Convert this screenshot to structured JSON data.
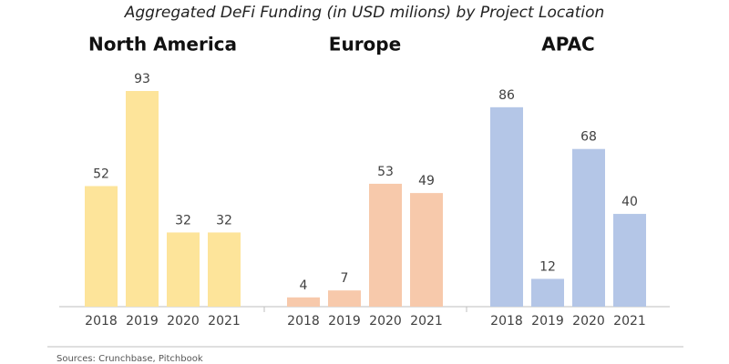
{
  "title": "Aggregated DeFi Funding (in USD milions) by Project Location",
  "source": "Sources: Crunchbase, Pitchbook",
  "chart_data": [
    {
      "type": "bar",
      "title": "North America",
      "categories": [
        "2018",
        "2019",
        "2020",
        "2021"
      ],
      "values": [
        52,
        93,
        32,
        32
      ],
      "color": "#fde49a"
    },
    {
      "type": "bar",
      "title": "Europe",
      "categories": [
        "2018",
        "2019",
        "2020",
        "2021"
      ],
      "values": [
        4,
        7,
        53,
        49
      ],
      "color": "#f7c9ab"
    },
    {
      "type": "bar",
      "title": "APAC",
      "categories": [
        "2018",
        "2019",
        "2020",
        "2021"
      ],
      "values": [
        86,
        12,
        68,
        40
      ],
      "color": "#b4c6e7"
    }
  ]
}
